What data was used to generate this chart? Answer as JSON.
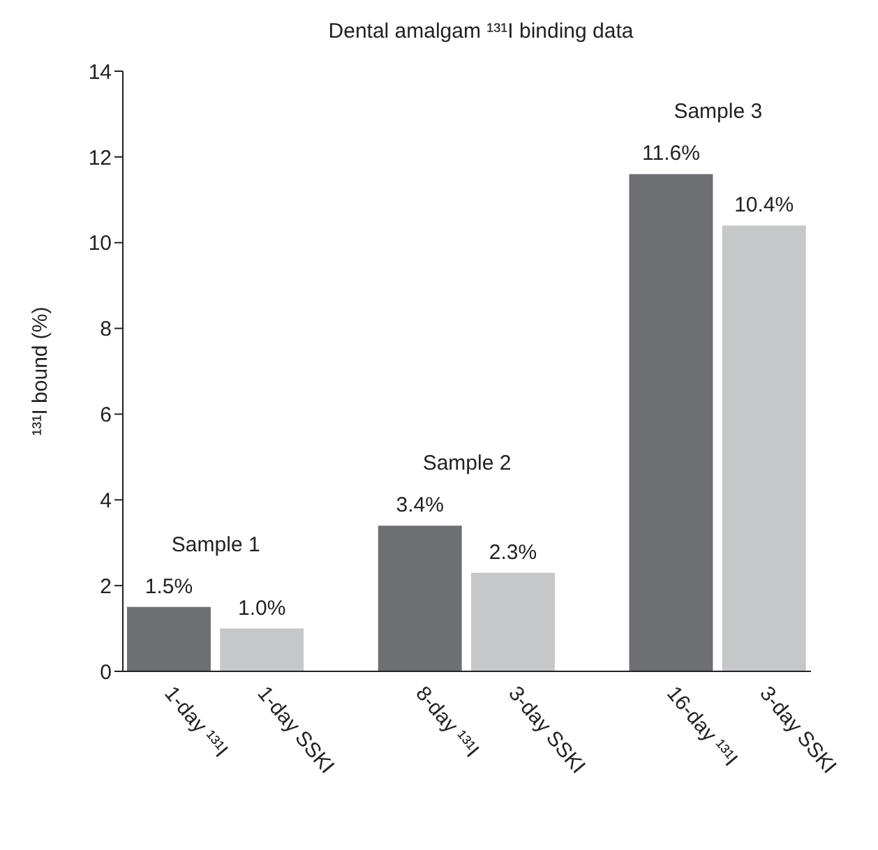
{
  "chart_data": {
    "type": "bar",
    "title": "Dental amalgam ¹³¹I binding data",
    "categories": [
      "1-day ¹³¹I",
      "1-day SSKI",
      "8-day ¹³¹I",
      "3-day SSKI",
      "16-day ¹³¹I",
      "3-day SSKI"
    ],
    "values": [
      1.5,
      1.0,
      3.4,
      2.3,
      11.6,
      10.4
    ],
    "colors": [
      "#6e6f73",
      "#c6c7c9",
      "#6e6f73",
      "#c6c7c9",
      "#6e6f73",
      "#c6c7c9"
    ],
    "value_labels": [
      "1.5%",
      "1.0%",
      "3.4%",
      "2.3%",
      "11.6%",
      "10.4%"
    ],
    "annotations": [
      "Sample 1",
      "Sample 2",
      "Sample 3"
    ],
    "ylabel": "¹³¹I bound (%)",
    "ylim": [
      0,
      14
    ],
    "yticks": [
      0,
      2,
      4,
      6,
      8,
      10,
      12,
      14
    ],
    "grid": false
  }
}
